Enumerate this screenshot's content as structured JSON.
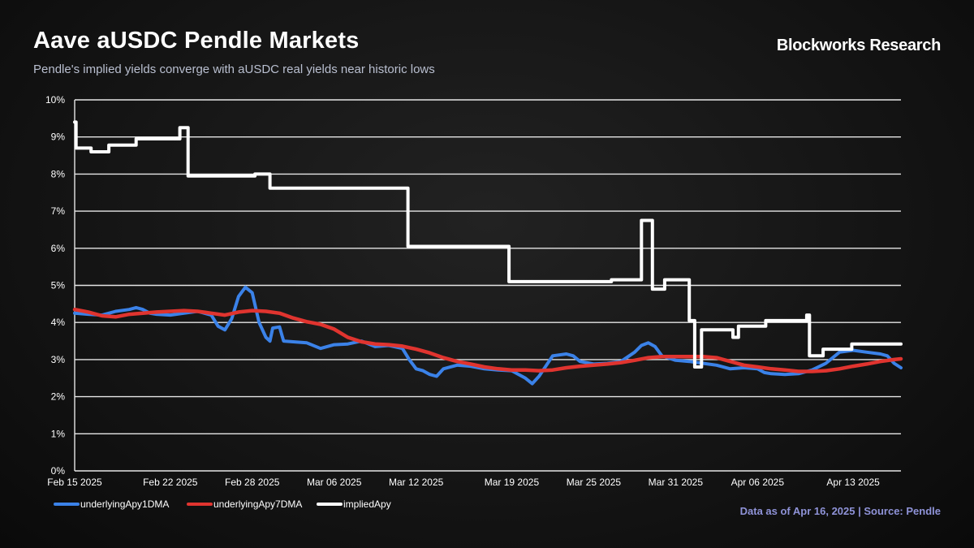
{
  "header": {
    "title": "Aave aUSDC Pendle Markets",
    "subtitle": "Pendle's implied yields converge with aUSDC real yields near historic lows",
    "brand": "Blockworks Research"
  },
  "footer": {
    "source": "Data as of Apr 16, 2025 | Source: Pendle"
  },
  "colors": {
    "background": "#0d0d0d",
    "grid": "#e6e6e6",
    "underlyingApy1DMA": "#3b82e8",
    "underlyingApy7DMA": "#e0342f",
    "impliedApy": "#ffffff"
  },
  "chart_data": {
    "type": "line",
    "title": "Aave aUSDC Pendle Markets",
    "xlabel": "",
    "ylabel": "",
    "x_unit": "days since Feb 15 2025",
    "xlim": [
      0,
      60.5
    ],
    "ylim": [
      0,
      10
    ],
    "grid": true,
    "legend_position": "bottom-left",
    "x_ticks": [
      {
        "x": 0,
        "label": "Feb 15 2025"
      },
      {
        "x": 7,
        "label": "Feb 22 2025"
      },
      {
        "x": 13,
        "label": "Feb 28 2025"
      },
      {
        "x": 19,
        "label": "Mar 06 2025"
      },
      {
        "x": 25,
        "label": "Mar 12 2025"
      },
      {
        "x": 32,
        "label": "Mar 19 2025"
      },
      {
        "x": 38,
        "label": "Mar 25 2025"
      },
      {
        "x": 44,
        "label": "Mar 31 2025"
      },
      {
        "x": 50,
        "label": "Apr 06 2025"
      },
      {
        "x": 57,
        "label": "Apr 13 2025"
      }
    ],
    "y_ticks": [
      {
        "y": 0,
        "label": "0%"
      },
      {
        "y": 1,
        "label": "1%"
      },
      {
        "y": 2,
        "label": "2%"
      },
      {
        "y": 3,
        "label": "3%"
      },
      {
        "y": 4,
        "label": "4%"
      },
      {
        "y": 5,
        "label": "5%"
      },
      {
        "y": 6,
        "label": "6%"
      },
      {
        "y": 7,
        "label": "7%"
      },
      {
        "y": 8,
        "label": "8%"
      },
      {
        "y": 9,
        "label": "9%"
      },
      {
        "y": 10,
        "label": "10%"
      }
    ],
    "series": [
      {
        "name": "underlyingApy1DMA",
        "color": "#3b82e8",
        "step": false,
        "points": [
          [
            0,
            4.25
          ],
          [
            1,
            4.22
          ],
          [
            2,
            4.2
          ],
          [
            3,
            4.3
          ],
          [
            4,
            4.35
          ],
          [
            4.5,
            4.4
          ],
          [
            5,
            4.35
          ],
          [
            5.5,
            4.25
          ],
          [
            6,
            4.22
          ],
          [
            7,
            4.2
          ],
          [
            8,
            4.25
          ],
          [
            9,
            4.3
          ],
          [
            10,
            4.2
          ],
          [
            10.5,
            3.9
          ],
          [
            11,
            3.8
          ],
          [
            11.5,
            4.1
          ],
          [
            12,
            4.7
          ],
          [
            12.5,
            4.95
          ],
          [
            13,
            4.8
          ],
          [
            13.5,
            4.0
          ],
          [
            14,
            3.6
          ],
          [
            14.3,
            3.5
          ],
          [
            14.5,
            3.85
          ],
          [
            15,
            3.88
          ],
          [
            15.3,
            3.5
          ],
          [
            16,
            3.48
          ],
          [
            17,
            3.45
          ],
          [
            18,
            3.3
          ],
          [
            19,
            3.4
          ],
          [
            20,
            3.42
          ],
          [
            21,
            3.5
          ],
          [
            22,
            3.35
          ],
          [
            23,
            3.38
          ],
          [
            24,
            3.3
          ],
          [
            24.5,
            3.0
          ],
          [
            25,
            2.75
          ],
          [
            25.5,
            2.7
          ],
          [
            26,
            2.6
          ],
          [
            26.5,
            2.55
          ],
          [
            27,
            2.75
          ],
          [
            28,
            2.85
          ],
          [
            29,
            2.82
          ],
          [
            30,
            2.75
          ],
          [
            31,
            2.72
          ],
          [
            32,
            2.7
          ],
          [
            33,
            2.5
          ],
          [
            33.5,
            2.35
          ],
          [
            34,
            2.55
          ],
          [
            35,
            3.1
          ],
          [
            36,
            3.15
          ],
          [
            36.5,
            3.1
          ],
          [
            37,
            2.95
          ],
          [
            38,
            2.88
          ],
          [
            39,
            2.9
          ],
          [
            40,
            2.95
          ],
          [
            41,
            3.2
          ],
          [
            41.5,
            3.38
          ],
          [
            42,
            3.45
          ],
          [
            42.5,
            3.35
          ],
          [
            43,
            3.1
          ],
          [
            44,
            2.98
          ],
          [
            45,
            2.95
          ],
          [
            46,
            2.9
          ],
          [
            47,
            2.85
          ],
          [
            48,
            2.75
          ],
          [
            49,
            2.78
          ],
          [
            50,
            2.75
          ],
          [
            50.5,
            2.65
          ],
          [
            51,
            2.62
          ],
          [
            52,
            2.6
          ],
          [
            53,
            2.62
          ],
          [
            54,
            2.72
          ],
          [
            55,
            2.9
          ],
          [
            56,
            3.2
          ],
          [
            57,
            3.25
          ],
          [
            58,
            3.2
          ],
          [
            59,
            3.15
          ],
          [
            59.5,
            3.1
          ],
          [
            60,
            2.9
          ],
          [
            60.5,
            2.78
          ]
        ]
      },
      {
        "name": "underlyingApy7DMA",
        "color": "#e0342f",
        "step": false,
        "points": [
          [
            0,
            4.35
          ],
          [
            1,
            4.28
          ],
          [
            2,
            4.18
          ],
          [
            3,
            4.15
          ],
          [
            4,
            4.22
          ],
          [
            5,
            4.25
          ],
          [
            6,
            4.28
          ],
          [
            7,
            4.3
          ],
          [
            8,
            4.32
          ],
          [
            9,
            4.3
          ],
          [
            10,
            4.25
          ],
          [
            11,
            4.2
          ],
          [
            12,
            4.28
          ],
          [
            13,
            4.32
          ],
          [
            14,
            4.3
          ],
          [
            15,
            4.25
          ],
          [
            16,
            4.12
          ],
          [
            17,
            4.02
          ],
          [
            18,
            3.95
          ],
          [
            19,
            3.82
          ],
          [
            20,
            3.6
          ],
          [
            21,
            3.48
          ],
          [
            22,
            3.42
          ],
          [
            23,
            3.4
          ],
          [
            24,
            3.36
          ],
          [
            25,
            3.28
          ],
          [
            26,
            3.18
          ],
          [
            27,
            3.05
          ],
          [
            28,
            2.95
          ],
          [
            29,
            2.88
          ],
          [
            30,
            2.8
          ],
          [
            31,
            2.75
          ],
          [
            32,
            2.72
          ],
          [
            33,
            2.72
          ],
          [
            34,
            2.7
          ],
          [
            35,
            2.72
          ],
          [
            36,
            2.78
          ],
          [
            37,
            2.82
          ],
          [
            38,
            2.85
          ],
          [
            39,
            2.88
          ],
          [
            40,
            2.92
          ],
          [
            41,
            2.98
          ],
          [
            42,
            3.05
          ],
          [
            43,
            3.08
          ],
          [
            44,
            3.08
          ],
          [
            45,
            3.08
          ],
          [
            46,
            3.08
          ],
          [
            47,
            3.05
          ],
          [
            48,
            2.95
          ],
          [
            49,
            2.85
          ],
          [
            50,
            2.8
          ],
          [
            51,
            2.75
          ],
          [
            52,
            2.72
          ],
          [
            53,
            2.68
          ],
          [
            54,
            2.68
          ],
          [
            55,
            2.7
          ],
          [
            56,
            2.75
          ],
          [
            57,
            2.82
          ],
          [
            58,
            2.88
          ],
          [
            59,
            2.95
          ],
          [
            60,
            3.0
          ],
          [
            60.5,
            3.02
          ]
        ]
      },
      {
        "name": "impliedApy",
        "color": "#ffffff",
        "step": true,
        "points": [
          [
            0,
            9.4
          ],
          [
            0.1,
            8.7
          ],
          [
            1.2,
            8.6
          ],
          [
            2.5,
            8.78
          ],
          [
            4.5,
            8.95
          ],
          [
            7.7,
            9.25
          ],
          [
            8.3,
            7.95
          ],
          [
            13.2,
            8.0
          ],
          [
            14.3,
            7.62
          ],
          [
            24.4,
            6.05
          ],
          [
            31.8,
            5.1
          ],
          [
            39.3,
            5.15
          ],
          [
            41.5,
            6.75
          ],
          [
            42.3,
            4.9
          ],
          [
            43.2,
            5.15
          ],
          [
            45,
            4.05
          ],
          [
            45.4,
            2.8
          ],
          [
            45.9,
            3.8
          ],
          [
            48.2,
            3.6
          ],
          [
            48.6,
            3.9
          ],
          [
            50.6,
            4.05
          ],
          [
            53.6,
            4.2
          ],
          [
            53.8,
            3.1
          ],
          [
            54.8,
            3.28
          ],
          [
            56.9,
            3.42
          ],
          [
            60.5,
            3.42
          ]
        ]
      }
    ]
  }
}
